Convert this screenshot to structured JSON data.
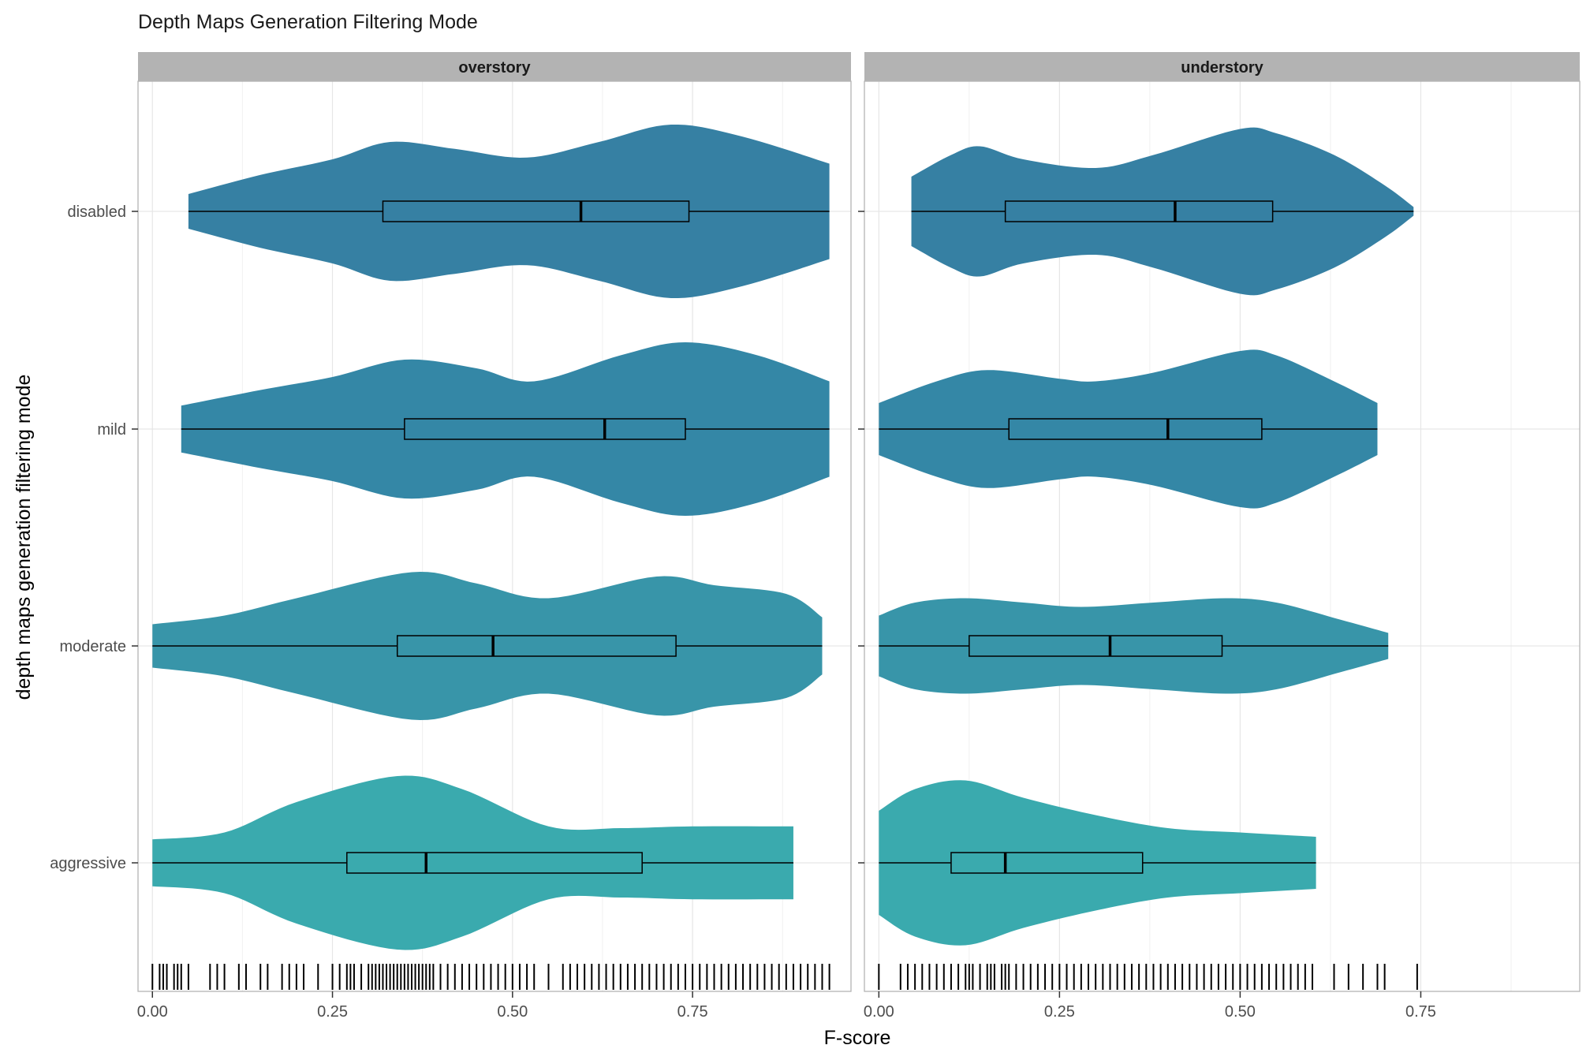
{
  "chart_data": {
    "type": "violin",
    "title": "Depth Maps Generation Filtering Mode",
    "xlabel": "F-score",
    "ylabel": "depth maps generation filtering mode",
    "xlim": [
      -0.02,
      0.97
    ],
    "x_ticks": [
      0.0,
      0.25,
      0.5,
      0.75
    ],
    "x_tick_labels": [
      "0.00",
      "0.25",
      "0.50",
      "0.75"
    ],
    "categories": [
      "disabled",
      "mild",
      "moderate",
      "aggressive"
    ],
    "grid": true,
    "colors": {
      "disabled": "#3680a3",
      "mild": "#3487a6",
      "moderate": "#3895a9",
      "aggressive": "#3aaaae",
      "strip_bg": "#b3b3b3",
      "grid": "#e6e6e6",
      "panel_border": "#b3b3b3"
    },
    "panels": [
      {
        "name": "overstory",
        "series": [
          {
            "category": "disabled",
            "min": 0.05,
            "q1": 0.32,
            "median": 0.595,
            "q3": 0.745,
            "max": 0.94,
            "density": [
              [
                0.05,
                0.2
              ],
              [
                0.15,
                0.42
              ],
              [
                0.25,
                0.6
              ],
              [
                0.33,
                0.8
              ],
              [
                0.42,
                0.72
              ],
              [
                0.52,
                0.62
              ],
              [
                0.62,
                0.8
              ],
              [
                0.72,
                1.0
              ],
              [
                0.82,
                0.86
              ],
              [
                0.94,
                0.55
              ]
            ]
          },
          {
            "category": "mild",
            "min": 0.04,
            "q1": 0.35,
            "median": 0.628,
            "q3": 0.74,
            "max": 0.94,
            "density": [
              [
                0.04,
                0.27
              ],
              [
                0.15,
                0.45
              ],
              [
                0.25,
                0.6
              ],
              [
                0.35,
                0.8
              ],
              [
                0.45,
                0.7
              ],
              [
                0.53,
                0.55
              ],
              [
                0.65,
                0.85
              ],
              [
                0.74,
                1.0
              ],
              [
                0.84,
                0.85
              ],
              [
                0.94,
                0.55
              ]
            ]
          },
          {
            "category": "moderate",
            "min": 0.0,
            "q1": 0.34,
            "median": 0.473,
            "q3": 0.727,
            "max": 0.93,
            "density": [
              [
                0.0,
                0.25
              ],
              [
                0.1,
                0.35
              ],
              [
                0.2,
                0.55
              ],
              [
                0.36,
                0.85
              ],
              [
                0.45,
                0.72
              ],
              [
                0.55,
                0.55
              ],
              [
                0.7,
                0.8
              ],
              [
                0.78,
                0.7
              ],
              [
                0.88,
                0.6
              ],
              [
                0.93,
                0.33
              ]
            ]
          },
          {
            "category": "aggressive",
            "min": 0.0,
            "q1": 0.27,
            "median": 0.38,
            "q3": 0.68,
            "max": 0.89,
            "density": [
              [
                0.0,
                0.27
              ],
              [
                0.1,
                0.35
              ],
              [
                0.2,
                0.7
              ],
              [
                0.34,
                1.0
              ],
              [
                0.43,
                0.85
              ],
              [
                0.55,
                0.42
              ],
              [
                0.65,
                0.4
              ],
              [
                0.75,
                0.42
              ],
              [
                0.89,
                0.42
              ]
            ]
          }
        ],
        "rug": [
          0.0,
          0.01,
          0.015,
          0.02,
          0.03,
          0.035,
          0.04,
          0.05,
          0.08,
          0.09,
          0.1,
          0.12,
          0.13,
          0.15,
          0.16,
          0.18,
          0.19,
          0.2,
          0.21,
          0.23,
          0.25,
          0.26,
          0.27,
          0.275,
          0.28,
          0.29,
          0.3,
          0.305,
          0.31,
          0.315,
          0.32,
          0.325,
          0.33,
          0.335,
          0.34,
          0.345,
          0.35,
          0.355,
          0.36,
          0.365,
          0.37,
          0.375,
          0.38,
          0.385,
          0.39,
          0.4,
          0.41,
          0.42,
          0.43,
          0.44,
          0.45,
          0.46,
          0.47,
          0.48,
          0.49,
          0.5,
          0.51,
          0.52,
          0.53,
          0.55,
          0.57,
          0.58,
          0.59,
          0.6,
          0.61,
          0.62,
          0.63,
          0.64,
          0.65,
          0.66,
          0.67,
          0.68,
          0.69,
          0.7,
          0.71,
          0.72,
          0.73,
          0.74,
          0.75,
          0.76,
          0.77,
          0.78,
          0.79,
          0.8,
          0.81,
          0.82,
          0.83,
          0.84,
          0.85,
          0.86,
          0.87,
          0.88,
          0.89,
          0.9,
          0.91,
          0.92,
          0.93,
          0.94
        ]
      },
      {
        "name": "understory",
        "series": [
          {
            "category": "disabled",
            "min": 0.045,
            "q1": 0.175,
            "median": 0.41,
            "q3": 0.545,
            "max": 0.74,
            "density": [
              [
                0.045,
                0.4
              ],
              [
                0.1,
                0.65
              ],
              [
                0.14,
                0.75
              ],
              [
                0.2,
                0.6
              ],
              [
                0.3,
                0.5
              ],
              [
                0.38,
                0.65
              ],
              [
                0.5,
                0.95
              ],
              [
                0.55,
                0.9
              ],
              [
                0.63,
                0.65
              ],
              [
                0.7,
                0.3
              ],
              [
                0.74,
                0.05
              ]
            ]
          },
          {
            "category": "mild",
            "min": 0.0,
            "q1": 0.18,
            "median": 0.4,
            "q3": 0.53,
            "max": 0.69,
            "density": [
              [
                0.0,
                0.3
              ],
              [
                0.08,
                0.55
              ],
              [
                0.15,
                0.68
              ],
              [
                0.25,
                0.58
              ],
              [
                0.3,
                0.55
              ],
              [
                0.38,
                0.65
              ],
              [
                0.5,
                0.9
              ],
              [
                0.55,
                0.85
              ],
              [
                0.63,
                0.55
              ],
              [
                0.69,
                0.3
              ]
            ]
          },
          {
            "category": "moderate",
            "min": 0.0,
            "q1": 0.125,
            "median": 0.32,
            "q3": 0.475,
            "max": 0.705,
            "density": [
              [
                0.0,
                0.35
              ],
              [
                0.05,
                0.5
              ],
              [
                0.12,
                0.55
              ],
              [
                0.2,
                0.5
              ],
              [
                0.28,
                0.45
              ],
              [
                0.38,
                0.5
              ],
              [
                0.48,
                0.55
              ],
              [
                0.55,
                0.5
              ],
              [
                0.64,
                0.3
              ],
              [
                0.705,
                0.15
              ]
            ]
          },
          {
            "category": "aggressive",
            "min": 0.0,
            "q1": 0.1,
            "median": 0.175,
            "q3": 0.365,
            "max": 0.605,
            "density": [
              [
                0.0,
                0.6
              ],
              [
                0.05,
                0.85
              ],
              [
                0.12,
                0.95
              ],
              [
                0.2,
                0.75
              ],
              [
                0.3,
                0.55
              ],
              [
                0.4,
                0.4
              ],
              [
                0.5,
                0.35
              ],
              [
                0.605,
                0.3
              ]
            ]
          }
        ],
        "rug": [
          0.0,
          0.03,
          0.04,
          0.05,
          0.06,
          0.07,
          0.08,
          0.09,
          0.1,
          0.11,
          0.12,
          0.125,
          0.13,
          0.14,
          0.15,
          0.155,
          0.16,
          0.17,
          0.175,
          0.18,
          0.19,
          0.2,
          0.21,
          0.22,
          0.23,
          0.24,
          0.25,
          0.26,
          0.27,
          0.28,
          0.29,
          0.3,
          0.31,
          0.32,
          0.33,
          0.34,
          0.35,
          0.36,
          0.37,
          0.38,
          0.39,
          0.4,
          0.41,
          0.42,
          0.43,
          0.44,
          0.45,
          0.46,
          0.47,
          0.48,
          0.49,
          0.5,
          0.51,
          0.52,
          0.53,
          0.54,
          0.55,
          0.56,
          0.57,
          0.58,
          0.59,
          0.6,
          0.63,
          0.65,
          0.67,
          0.69,
          0.7,
          0.745
        ]
      }
    ]
  }
}
